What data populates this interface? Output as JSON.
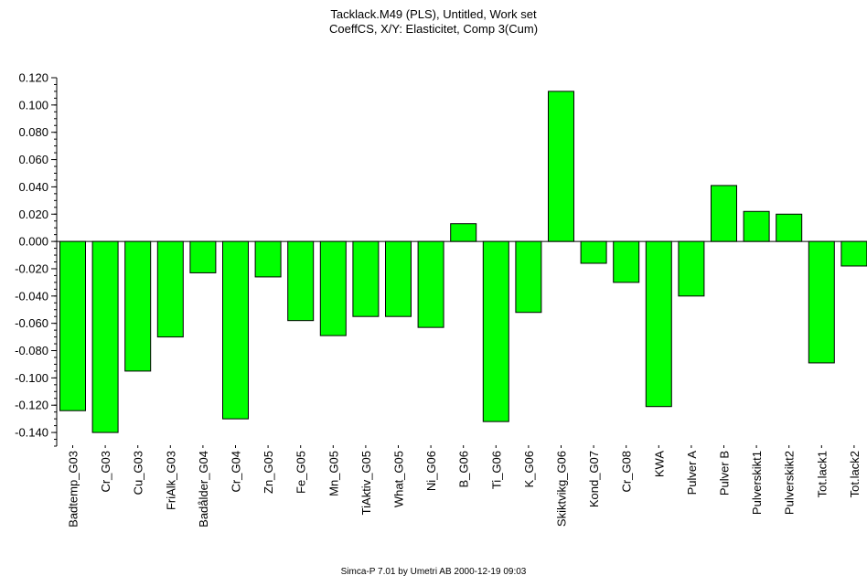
{
  "title_line1": "Tacklack.M49 (PLS), Untitled, Work set",
  "title_line2": "CoeffCS, X/Y: Elasticitet, Comp 3(Cum)",
  "footer": "Simca-P 7.01 by Umetri AB 2000-12-19 09:03",
  "chart_data": {
    "type": "bar",
    "title": "Tacklack.M49 (PLS), Untitled, Work set / CoeffCS, X/Y: Elasticitet, Comp 3(Cum)",
    "xlabel": "",
    "ylabel": "",
    "ylim": [
      -0.15,
      0.12
    ],
    "yticks": [
      "0.120",
      "0.100",
      "0.080",
      "0.060",
      "0.040",
      "0.020",
      "0.000",
      "-0.020",
      "-0.040",
      "-0.060",
      "-0.080",
      "-0.100",
      "-0.120",
      "-0.140"
    ],
    "grid": false,
    "bar_color": "#00ff00",
    "categories": [
      "Badtemp_G03",
      "Cr_G03",
      "Cu_G03",
      "FriAlk_G03",
      "Badålder_G04",
      "Cr_G04",
      "Zn_G05",
      "Fe_G05",
      "Mn_G05",
      "TiAktiv_G05",
      "What_G05",
      "Ni_G06",
      "B_G06",
      "Ti_G06",
      "K_G06",
      "Skiktvikg_G06",
      "Kond_G07",
      "Cr_G08",
      "KWA",
      "Pulver A",
      "Pulver B",
      "Pulverskikt1",
      "Pulverskikt2",
      "Tot.lack1",
      "Tot.lack2"
    ],
    "values": [
      -0.124,
      -0.14,
      -0.095,
      -0.07,
      -0.023,
      -0.13,
      -0.026,
      -0.058,
      -0.069,
      -0.055,
      -0.055,
      -0.063,
      0.013,
      -0.132,
      -0.052,
      0.11,
      -0.016,
      -0.03,
      -0.121,
      -0.04,
      0.041,
      0.022,
      0.02,
      -0.089,
      -0.018
    ]
  }
}
